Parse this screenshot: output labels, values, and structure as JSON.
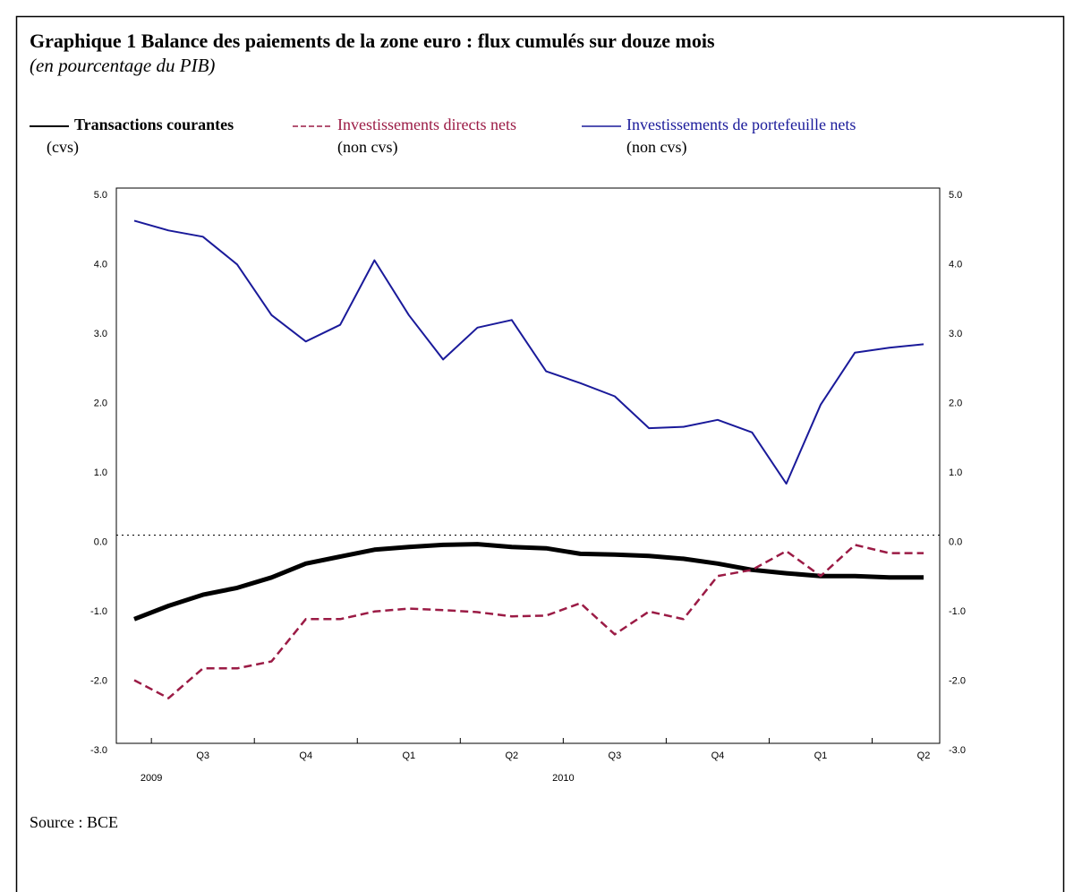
{
  "chart_data": {
    "type": "line",
    "title": "Graphique 1 Balance des paiements de la zone euro : flux cumulés sur douze mois",
    "subtitle": "(en pourcentage du PIB)",
    "source": "Source : BCE",
    "categories": [
      null,
      null,
      "Q3",
      null,
      null,
      "Q4",
      null,
      null,
      "Q1",
      null,
      null,
      "Q2",
      null,
      null,
      "Q3",
      null,
      null,
      "Q4",
      null,
      null,
      "Q1",
      null,
      null,
      "Q2"
    ],
    "years": [
      "2009",
      null,
      null,
      null,
      null,
      null,
      null,
      null,
      null,
      null,
      null,
      null,
      "2010",
      null,
      null,
      null,
      null,
      null,
      null,
      null,
      null,
      null,
      null,
      null
    ],
    "series": [
      {
        "name": "Transactions courantes",
        "note": "(cvs)",
        "color": "#000000",
        "style": "solid",
        "width": 5,
        "values": [
          -1.21,
          -1.02,
          -0.86,
          -0.76,
          -0.61,
          -0.41,
          -0.31,
          -0.21,
          -0.17,
          -0.14,
          -0.13,
          -0.17,
          -0.19,
          -0.27,
          -0.28,
          -0.3,
          -0.34,
          -0.41,
          -0.5,
          -0.55,
          -0.59,
          -0.59,
          -0.61,
          -0.61
        ]
      },
      {
        "name": "Investissements directs nets",
        "note": "(non cvs)",
        "color": "#9b1b45",
        "style": "dashed",
        "width": 2.5,
        "values": [
          -2.09,
          -2.35,
          -1.92,
          -1.92,
          -1.82,
          -1.21,
          -1.21,
          -1.1,
          -1.06,
          -1.08,
          -1.11,
          -1.17,
          -1.16,
          -0.98,
          -1.43,
          -1.1,
          -1.21,
          -0.59,
          -0.5,
          -0.23,
          -0.59,
          -0.14,
          -0.26,
          -0.26
        ]
      },
      {
        "name": "Investissements de portefeuille nets",
        "note": "(non cvs)",
        "color": "#1a1a9a",
        "style": "solid",
        "width": 2,
        "values": [
          4.53,
          4.39,
          4.3,
          3.9,
          3.17,
          2.79,
          3.03,
          3.96,
          3.17,
          2.53,
          2.99,
          3.1,
          2.36,
          2.19,
          2.0,
          1.54,
          1.56,
          1.66,
          1.48,
          0.74,
          1.88,
          2.63,
          2.7,
          2.75
        ]
      }
    ],
    "ylim": [
      -3,
      5
    ],
    "yticks": [
      {
        "value": 5,
        "label": "5.0"
      },
      {
        "value": 4,
        "label": "4.0"
      },
      {
        "value": 3,
        "label": "3.0"
      },
      {
        "value": 2,
        "label": "2.0"
      },
      {
        "value": 1,
        "label": "1.0"
      },
      {
        "value": 0,
        "label": "0.0"
      },
      {
        "value": -1,
        "label": "-1.0"
      },
      {
        "value": -2,
        "label": "-2.0"
      },
      {
        "value": -3,
        "label": "-3.0"
      }
    ],
    "zero_line": true,
    "right_axis": true
  }
}
